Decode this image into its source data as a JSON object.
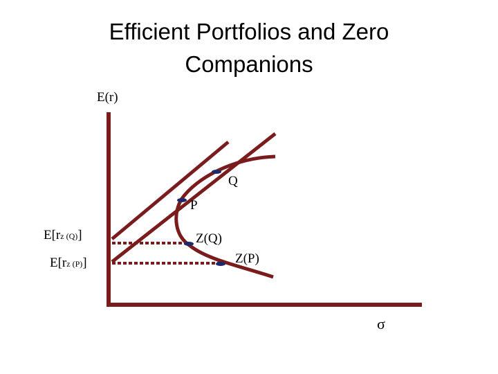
{
  "title": [
    "Efficient Portfolios and Zero",
    "Companions"
  ],
  "axes": {
    "y_label": "E(r)",
    "x_label": "σ"
  },
  "points": [
    {
      "label": "Q"
    },
    {
      "label": "P"
    },
    {
      "label": "Z(Q)"
    },
    {
      "label": "Z(P)"
    }
  ],
  "intercepts": [
    {
      "prefix": "E[r",
      "subscript": "z (Q)",
      "suffix": "]"
    },
    {
      "prefix": "E[r",
      "subscript": "z (P)",
      "suffix": "]"
    }
  ]
}
